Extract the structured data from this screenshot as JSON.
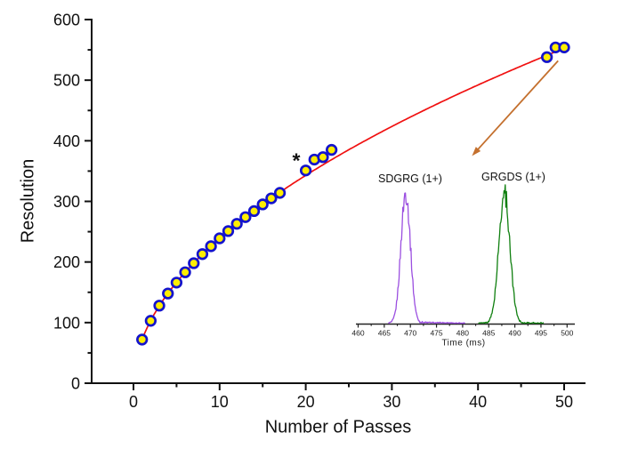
{
  "figure": {
    "background": "#FFFFFF"
  },
  "chart_data": [
    {
      "type": "scatter",
      "title": "",
      "xlabel": "Number of Passes",
      "ylabel": "Resolution",
      "xlim": [
        -5,
        52.5
      ],
      "ylim": [
        0,
        600
      ],
      "x_ticks": [
        0,
        10,
        20,
        30,
        40,
        50
      ],
      "x_minor_ticks": [
        5,
        15,
        25,
        35,
        45
      ],
      "y_ticks": [
        0,
        100,
        200,
        300,
        400,
        500,
        600
      ],
      "y_minor_ticks": [
        50,
        150,
        250,
        350,
        450,
        550
      ],
      "grid": false,
      "legend": "none",
      "series": [
        {
          "name": "resolution-data-points",
          "type": "scatter",
          "marker": "circle",
          "marker_fill": "#FFEE00",
          "marker_stroke": "#1414CC",
          "x": [
            1,
            2,
            3,
            4,
            5,
            6,
            7,
            8,
            9,
            10,
            11,
            12,
            13,
            14,
            15,
            16,
            17,
            20,
            21,
            22,
            23,
            48,
            49,
            50
          ],
          "y": [
            72,
            103,
            128,
            148,
            166,
            183,
            198,
            213,
            226,
            239,
            251,
            263,
            274,
            284,
            295,
            305,
            314,
            351,
            369,
            373,
            385,
            538,
            554,
            554
          ]
        },
        {
          "name": "power-law-fit",
          "type": "line",
          "color": "#F01010",
          "fit_form": "y = a * x^b",
          "a": 72,
          "b": 0.521,
          "x_range": [
            1,
            50.4
          ]
        }
      ],
      "annotations": [
        {
          "text": "*",
          "x": 18.9,
          "y": 371
        }
      ],
      "arrow": {
        "from": [
          49.3,
          532
        ],
        "to": [
          39.3,
          375
        ],
        "color": "#C4702E"
      }
    },
    {
      "type": "line",
      "title": "",
      "xlabel": "Time (ms)",
      "xlim": [
        460,
        500
      ],
      "x_ticks": [
        460,
        465,
        470,
        475,
        480,
        485,
        490,
        495,
        500
      ],
      "minor_tick_interval": 2.5,
      "position": "inset lower-right",
      "series": [
        {
          "name": "SDGRG (1+)",
          "color": "#9B4FE0",
          "peak_center": 469.1,
          "peak_sigma": 0.9,
          "peak_height": 1.0,
          "x_range": [
            465.8,
            480.5
          ],
          "tail": 0.03
        },
        {
          "name": "GRGDS (1+)",
          "color": "#0F7F0F",
          "peak_center": 488.0,
          "peak_sigma": 1.05,
          "peak_height": 1.0,
          "x_range": [
            483.0,
            495.5
          ],
          "tail": 0.012
        }
      ]
    }
  ]
}
